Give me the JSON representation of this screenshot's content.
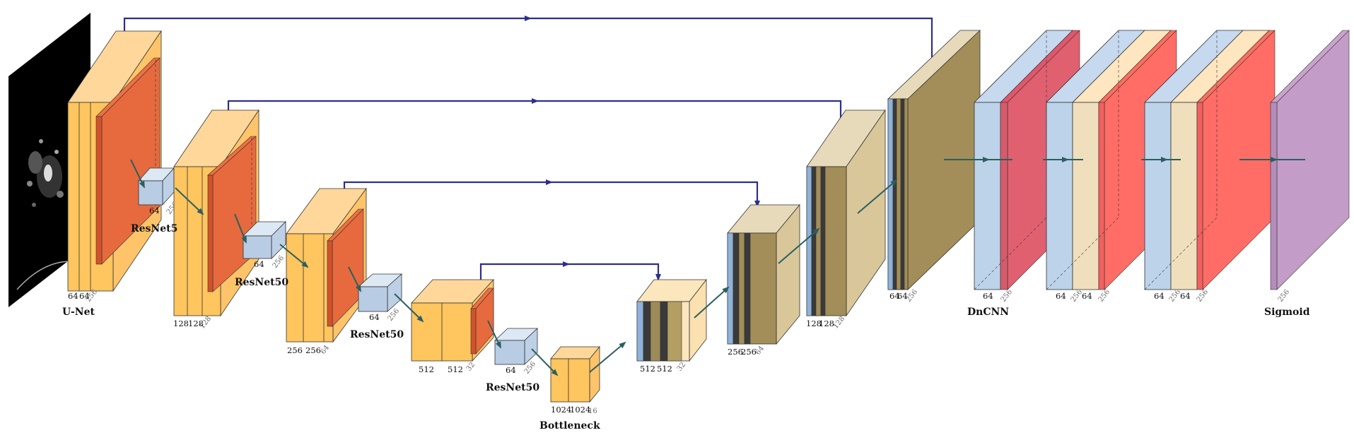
{
  "labels": {
    "unet": "U-Net",
    "resnet1": "ResNet5",
    "resnet2": "ResNet50",
    "resnet3": "ResNet50",
    "resnet4": "ResNet50",
    "bottleneck": "Bottleneck",
    "dncnn": "DnCNN",
    "sigmoid": "Sigmoid"
  },
  "enc1": {
    "w1": "64",
    "w2": "64",
    "d": "256"
  },
  "res1": {
    "w": "64",
    "d": "256"
  },
  "enc2": {
    "w1": "128",
    "w2": "128",
    "d": "128"
  },
  "res2": {
    "w": "64",
    "d": "256"
  },
  "enc3": {
    "w1": "256",
    "w2": "256",
    "d": "64"
  },
  "res3": {
    "w": "64",
    "d": "256"
  },
  "enc4": {
    "w1": "512",
    "w2": "512",
    "d": "32"
  },
  "res4": {
    "w": "64",
    "d": "256"
  },
  "bott": {
    "w1": "1024",
    "w2": "1024",
    "d": "16"
  },
  "dec4": {
    "w1": "512",
    "w2": "512",
    "d": "32"
  },
  "dec3": {
    "w1": "256",
    "w2": "256",
    "d": "64"
  },
  "dec2": {
    "w1": "128",
    "w2": "128",
    "d": "128"
  },
  "dec1": {
    "w1": "64",
    "w2": "64",
    "d": "256"
  },
  "dn1": {
    "w": "64",
    "d": "256"
  },
  "dn2": {
    "w1": "64",
    "d1": "256",
    "w2": "64",
    "d2": "256"
  },
  "dn3": {
    "w1": "64",
    "d1": "256",
    "w2": "64",
    "d2": "256"
  },
  "sig": {
    "d": "256"
  }
}
